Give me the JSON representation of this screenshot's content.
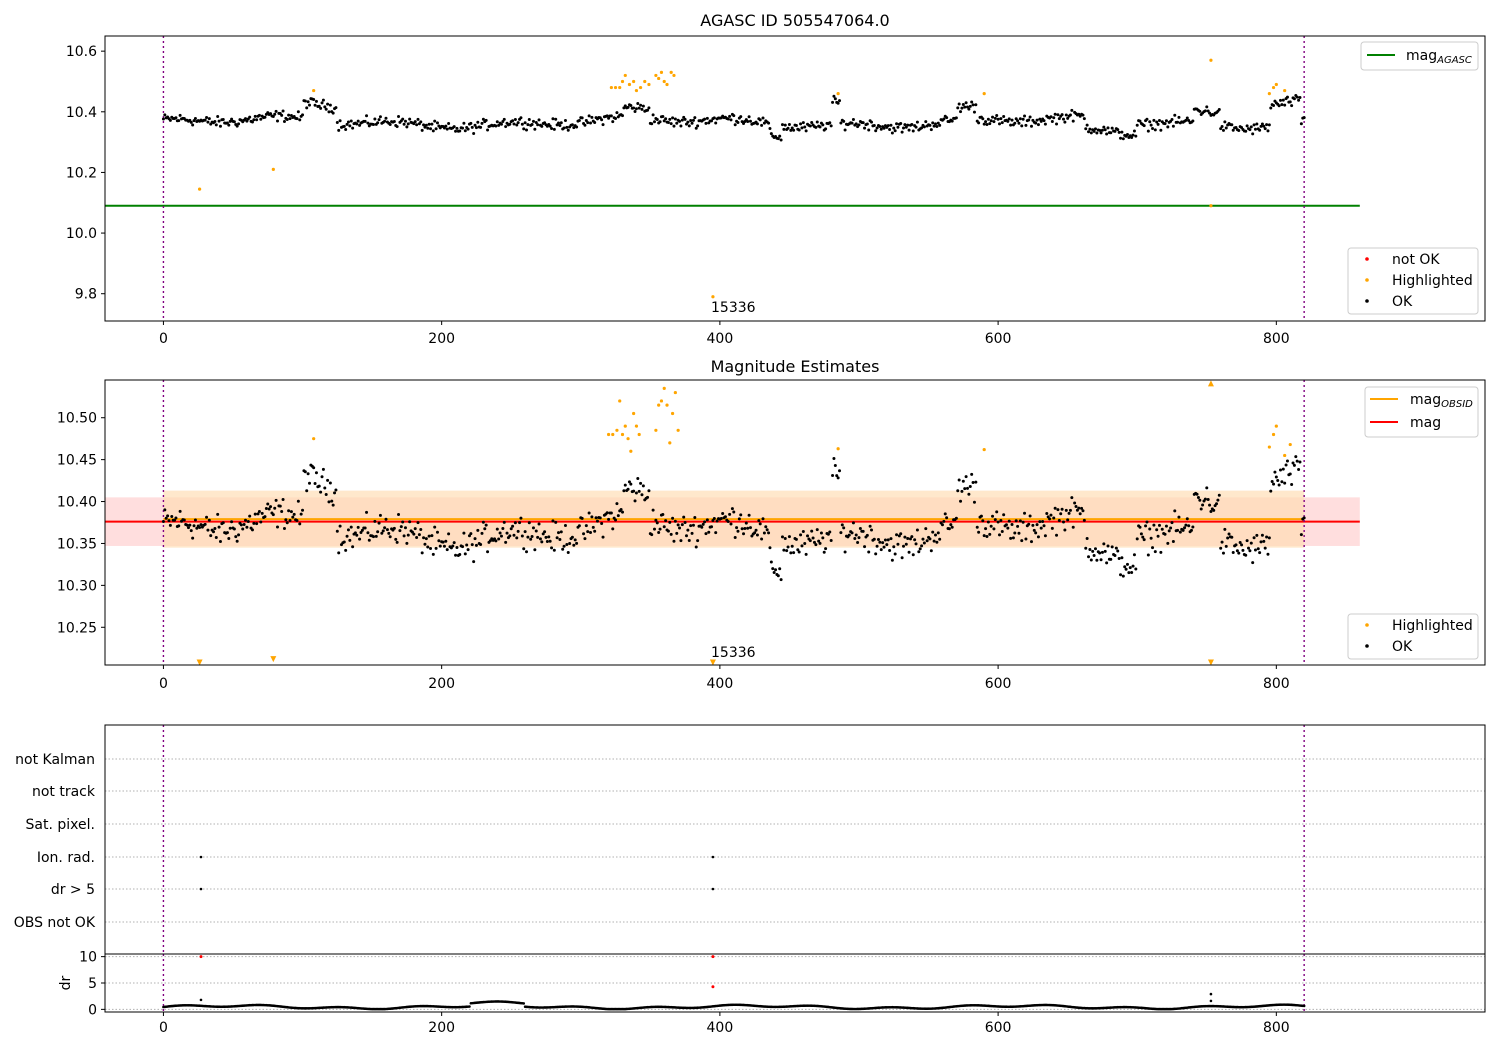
{
  "colors": {
    "ok": "#000000",
    "highlighted": "#ffa500",
    "not_ok": "#ff0000",
    "mag_agasc": "#008000",
    "mag_obsid": "#ffa500",
    "mag": "#ff0000",
    "vline": "#800080",
    "band_obsid": "#ffdcb0",
    "band_mag": "#ffcccc",
    "grid": "#b0b0b0"
  },
  "chart_data": [
    {
      "id": "top",
      "type": "scatter",
      "title": "AGASC ID 505547064.0",
      "xlim": [
        -42,
        950
      ],
      "ylim": [
        9.71,
        10.65
      ],
      "xticks": [
        0,
        200,
        400,
        600,
        800
      ],
      "yticks": [
        9.8,
        10.0,
        10.2,
        10.4,
        10.6
      ],
      "ytick_labels": [
        "9.8",
        "10.0",
        "10.2",
        "10.4",
        "10.6"
      ],
      "vlines_x": [
        0,
        820
      ],
      "hlines": [
        {
          "name": "mag_agasc",
          "y": 10.09,
          "x0": -42,
          "x1": 860,
          "color_key": "mag_agasc"
        }
      ],
      "legend_lines": [
        {
          "label": "mag",
          "sub": "AGASC",
          "color_key": "mag_agasc"
        }
      ],
      "legend_points": [
        {
          "label": "not OK",
          "color_key": "not_ok"
        },
        {
          "label": "Highlighted",
          "color_key": "highlighted"
        },
        {
          "label": "OK",
          "color_key": "ok"
        }
      ],
      "annotation": {
        "text": "15336",
        "x": 395,
        "y": 9.76
      },
      "series_ok_base": 10.37,
      "highlighted_points": [
        [
          26,
          10.145
        ],
        [
          79,
          10.21
        ],
        [
          108,
          10.47
        ],
        [
          322,
          10.48
        ],
        [
          325,
          10.48
        ],
        [
          328,
          10.48
        ],
        [
          330,
          10.5
        ],
        [
          332,
          10.52
        ],
        [
          335,
          10.49
        ],
        [
          338,
          10.5
        ],
        [
          340,
          10.47
        ],
        [
          343,
          10.48
        ],
        [
          346,
          10.5
        ],
        [
          349,
          10.49
        ],
        [
          354,
          10.52
        ],
        [
          356,
          10.51
        ],
        [
          358,
          10.53
        ],
        [
          360,
          10.5
        ],
        [
          362,
          10.49
        ],
        [
          365,
          10.53
        ],
        [
          367,
          10.52
        ],
        [
          485,
          10.46
        ],
        [
          590,
          10.46
        ],
        [
          753,
          10.57
        ],
        [
          753,
          10.09
        ],
        [
          795,
          10.46
        ],
        [
          798,
          10.48
        ],
        [
          800,
          10.49
        ],
        [
          806,
          10.47
        ]
      ],
      "notok_points": [
        [
          395,
          9.79
        ]
      ]
    },
    {
      "id": "mid",
      "type": "scatter",
      "title": "Magnitude Estimates",
      "xlim": [
        -42,
        950
      ],
      "ylim": [
        10.205,
        10.545
      ],
      "xticks": [
        0,
        200,
        400,
        600,
        800
      ],
      "yticks": [
        10.25,
        10.3,
        10.35,
        10.4,
        10.45,
        10.5
      ],
      "ytick_labels": [
        "10.25",
        "10.30",
        "10.35",
        "10.40",
        "10.45",
        "10.50"
      ],
      "vlines_x": [
        0,
        820
      ],
      "hlines": [
        {
          "name": "mag_obsid",
          "y": 10.379,
          "x0": 0,
          "x1": 820,
          "color_key": "mag_obsid"
        },
        {
          "name": "mag",
          "y": 10.376,
          "x0": -42,
          "x1": 860,
          "color_key": "mag"
        }
      ],
      "bands": [
        {
          "name": "mag-band",
          "y0": 10.347,
          "y1": 10.405,
          "x0": -42,
          "x1": 860,
          "color_key": "band_mag"
        },
        {
          "name": "obsid-band",
          "y0": 10.345,
          "y1": 10.413,
          "x0": 0,
          "x1": 820,
          "color_key": "band_obsid"
        }
      ],
      "legend_lines": [
        {
          "label": "mag",
          "sub": "OBSID",
          "color_key": "mag_obsid"
        },
        {
          "label": "mag",
          "sub": "",
          "color_key": "mag"
        }
      ],
      "legend_points": [
        {
          "label": "Highlighted",
          "color_key": "highlighted"
        },
        {
          "label": "OK",
          "color_key": "ok"
        }
      ],
      "annotation": {
        "text": "15336",
        "x": 395,
        "y": 10.214
      },
      "series_ok_base": 10.37,
      "highlighted_points": [
        [
          108,
          10.475
        ],
        [
          320,
          10.48
        ],
        [
          323,
          10.48
        ],
        [
          326,
          10.485
        ],
        [
          328,
          10.52
        ],
        [
          330,
          10.48
        ],
        [
          332,
          10.49
        ],
        [
          334,
          10.475
        ],
        [
          336,
          10.46
        ],
        [
          338,
          10.505
        ],
        [
          340,
          10.49
        ],
        [
          342,
          10.48
        ],
        [
          354,
          10.485
        ],
        [
          356,
          10.515
        ],
        [
          358,
          10.52
        ],
        [
          360,
          10.535
        ],
        [
          362,
          10.515
        ],
        [
          364,
          10.47
        ],
        [
          366,
          10.505
        ],
        [
          368,
          10.53
        ],
        [
          370,
          10.485
        ],
        [
          485,
          10.463
        ],
        [
          590,
          10.462
        ],
        [
          795,
          10.465
        ],
        [
          798,
          10.48
        ],
        [
          800,
          10.49
        ],
        [
          806,
          10.455
        ],
        [
          810,
          10.468
        ]
      ],
      "markers_up": [
        [
          753,
          10.541
        ]
      ],
      "markers_down": [
        [
          26,
          10.208
        ],
        [
          79,
          10.212
        ],
        [
          395,
          10.208
        ],
        [
          753,
          10.208
        ]
      ]
    },
    {
      "id": "bottom",
      "type": "scatter",
      "title": "",
      "xlim": [
        -42,
        950
      ],
      "categories": [
        "not Kalman",
        "not track",
        "Sat. pixel.",
        "Ion. rad.",
        "dr > 5",
        "OBS not OK"
      ],
      "vlines_x": [
        0,
        820
      ],
      "flag_points": [
        {
          "category": "Ion. rad.",
          "x": 27
        },
        {
          "category": "Ion. rad.",
          "x": 395
        },
        {
          "category": "dr > 5",
          "x": 27
        },
        {
          "category": "dr > 5",
          "x": 395
        }
      ]
    },
    {
      "id": "dr",
      "type": "scatter",
      "title": "",
      "xlim": [
        -42,
        950
      ],
      "ylim": [
        -0.5,
        10.5
      ],
      "xticks": [
        0,
        200,
        400,
        600,
        800
      ],
      "yticks": [
        0,
        5,
        10
      ],
      "ytick_labels": [
        "0",
        "5",
        "10"
      ],
      "ylabel": "dr",
      "vlines_x": [
        0,
        820
      ],
      "notok_points": [
        [
          27,
          10
        ],
        [
          395,
          10
        ],
        [
          395,
          4.3
        ]
      ],
      "extra_ok_points": [
        [
          27,
          1.8
        ],
        [
          753,
          2.9
        ],
        [
          753,
          1.6
        ]
      ]
    }
  ]
}
